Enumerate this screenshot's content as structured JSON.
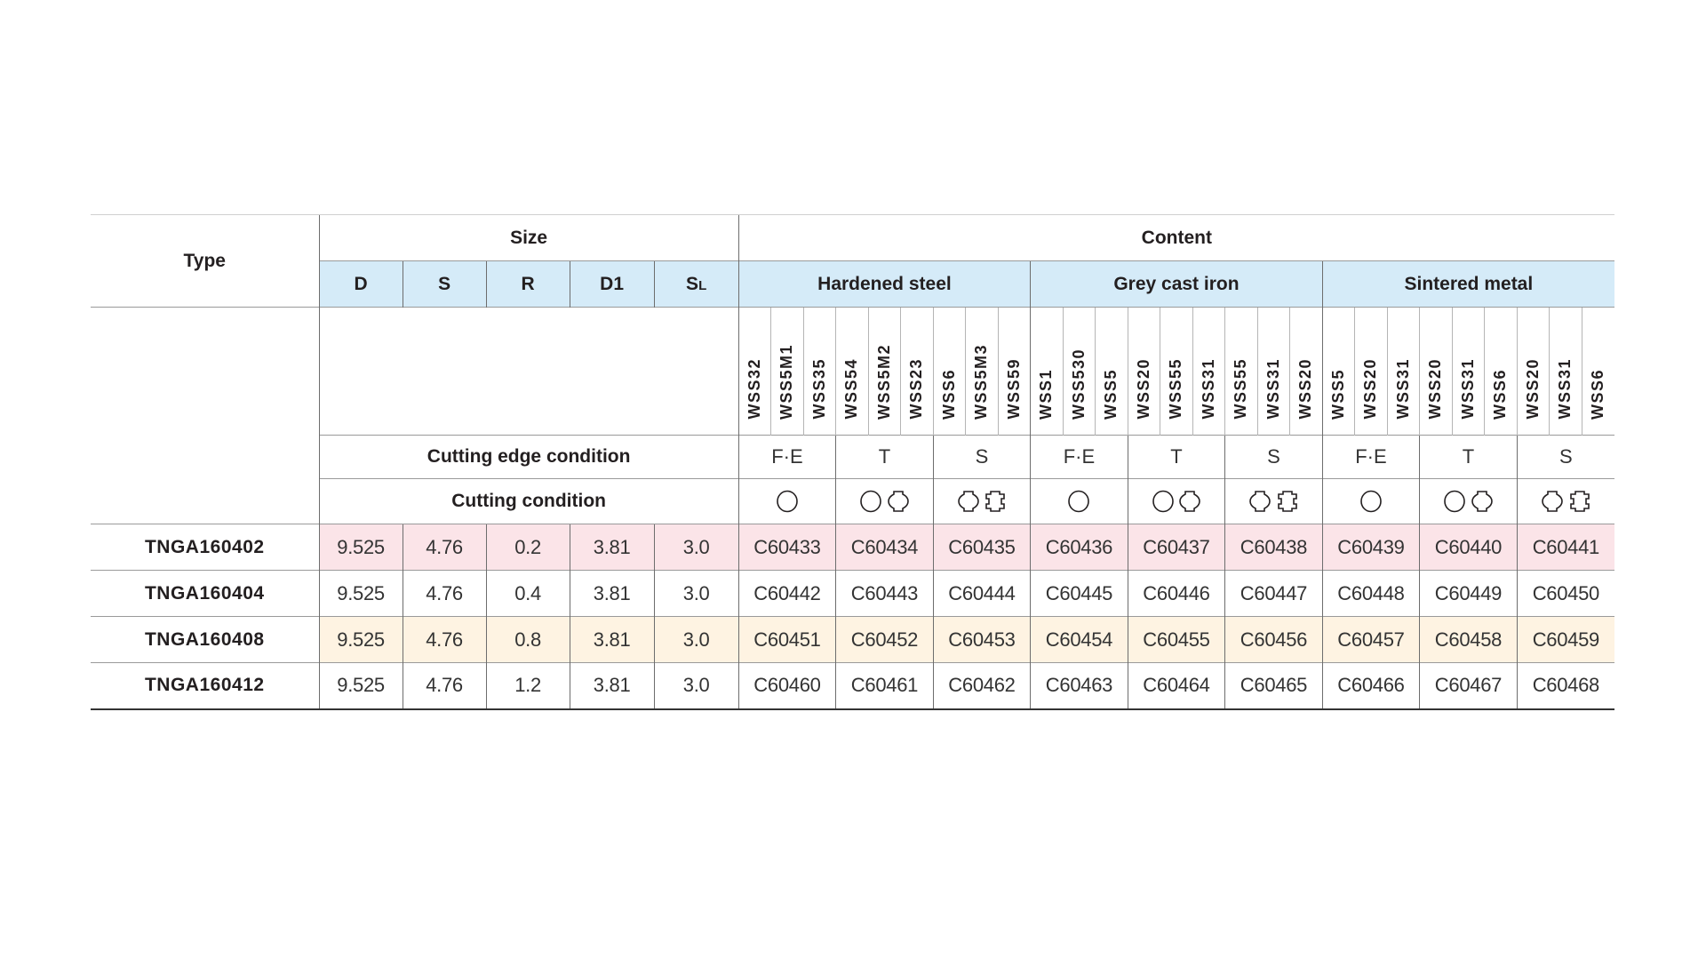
{
  "header": {
    "type_label": "Type",
    "size_label": "Size",
    "content_label": "Content",
    "size_columns": [
      "D",
      "S",
      "R",
      "D1",
      "SL"
    ],
    "materials": [
      "Hardened steel",
      "Grey cast iron",
      "Sintered metal"
    ],
    "cutting_edge_label": "Cutting edge condition",
    "cutting_condition_label": "Cutting condition"
  },
  "grades": [
    "WSS32",
    "WSS5M1",
    "WSS35",
    "WSS54",
    "WSS5M2",
    "WSS23",
    "WSS6",
    "WSS5M3",
    "WSS59",
    "WSS1",
    "WSS530",
    "WSS5",
    "WSS20",
    "WSS55",
    "WSS31",
    "WSS55",
    "WSS31",
    "WSS20",
    "WSS5",
    "WSS20",
    "WSS31",
    "WSS20",
    "WSS31",
    "WSS6",
    "WSS20",
    "WSS31",
    "WSS6"
  ],
  "edge_conditions": [
    "F·E",
    "T",
    "S",
    "F·E",
    "T",
    "S",
    "F·E",
    "T",
    "S"
  ],
  "cutting_condition_icons": [
    "continuous-cut-icon",
    "light-interrupted-cut-icon",
    "heavy-interrupted-cut-icon",
    "continuous-cut-icon",
    "light-interrupted-cut-icon",
    "heavy-interrupted-cut-icon",
    "continuous-cut-icon",
    "light-interrupted-cut-icon",
    "heavy-interrupted-cut-icon"
  ],
  "colors": {
    "header_blue": "#d5ebf8",
    "row_pink": "#fbe4e8",
    "row_yellow": "#fef3e2"
  },
  "rows": [
    {
      "type": "TNGA160402",
      "highlight": "pink",
      "size": [
        "9.525",
        "4.76",
        "0.2",
        "3.81",
        "3.0"
      ],
      "codes": [
        "C60433",
        "C60434",
        "C60435",
        "C60436",
        "C60437",
        "C60438",
        "C60439",
        "C60440",
        "C60441"
      ]
    },
    {
      "type": "TNGA160404",
      "highlight": "none",
      "size": [
        "9.525",
        "4.76",
        "0.4",
        "3.81",
        "3.0"
      ],
      "codes": [
        "C60442",
        "C60443",
        "C60444",
        "C60445",
        "C60446",
        "C60447",
        "C60448",
        "C60449",
        "C60450"
      ]
    },
    {
      "type": "TNGA160408",
      "highlight": "yellow",
      "size": [
        "9.525",
        "4.76",
        "0.8",
        "3.81",
        "3.0"
      ],
      "codes": [
        "C60451",
        "C60452",
        "C60453",
        "C60454",
        "C60455",
        "C60456",
        "C60457",
        "C60458",
        "C60459"
      ]
    },
    {
      "type": "TNGA160412",
      "highlight": "none",
      "size": [
        "9.525",
        "4.76",
        "1.2",
        "3.81",
        "3.0"
      ],
      "codes": [
        "C60460",
        "C60461",
        "C60462",
        "C60463",
        "C60464",
        "C60465",
        "C60466",
        "C60467",
        "C60468"
      ]
    }
  ]
}
